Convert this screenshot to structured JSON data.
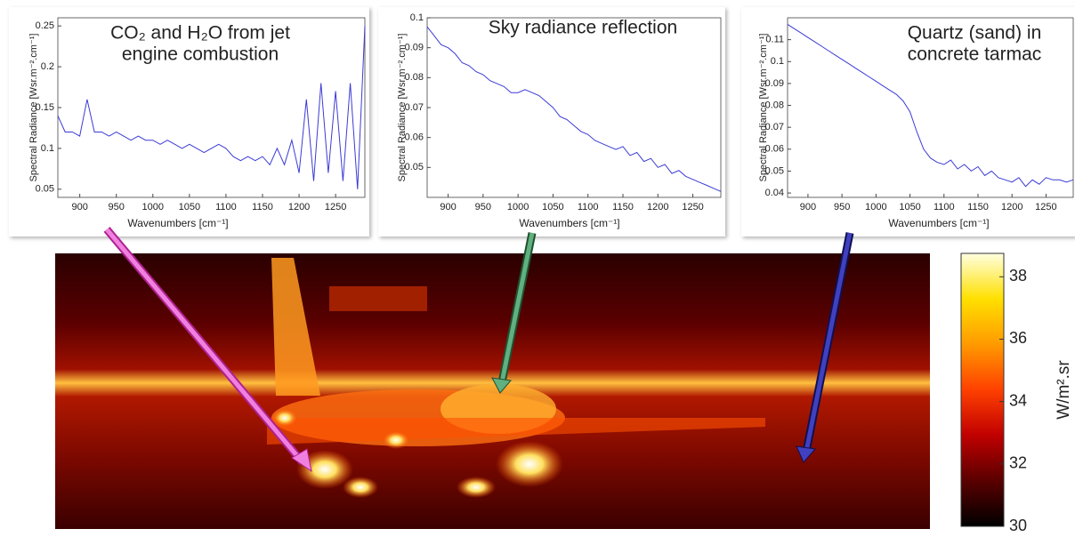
{
  "chart_data": [
    {
      "type": "line",
      "title": [
        "CO₂ and H₂O from jet",
        "engine combustion"
      ],
      "xlabel": "Wavenumbers [cm⁻¹]",
      "ylabel": "Spectral Radiance [Wsr.m⁻².cm⁻¹]",
      "color": "#3b3bd6",
      "x": [
        870,
        880,
        890,
        900,
        910,
        920,
        930,
        940,
        950,
        960,
        970,
        980,
        990,
        1000,
        1010,
        1020,
        1030,
        1040,
        1050,
        1060,
        1070,
        1080,
        1090,
        1100,
        1110,
        1120,
        1130,
        1140,
        1150,
        1160,
        1170,
        1180,
        1190,
        1200,
        1210,
        1220,
        1230,
        1240,
        1250,
        1260,
        1270,
        1280,
        1290
      ],
      "values": [
        0.14,
        0.12,
        0.12,
        0.115,
        0.16,
        0.12,
        0.12,
        0.115,
        0.12,
        0.115,
        0.11,
        0.115,
        0.11,
        0.11,
        0.105,
        0.11,
        0.105,
        0.1,
        0.105,
        0.1,
        0.095,
        0.1,
        0.105,
        0.1,
        0.09,
        0.085,
        0.09,
        0.085,
        0.09,
        0.08,
        0.1,
        0.08,
        0.11,
        0.07,
        0.16,
        0.06,
        0.18,
        0.07,
        0.17,
        0.06,
        0.18,
        0.05,
        0.25
      ],
      "xlim": [
        870,
        1290
      ],
      "xticks": [
        900,
        950,
        1000,
        1050,
        1100,
        1150,
        1200,
        1250
      ],
      "ylim": [
        0.04,
        0.26
      ],
      "yticks": [
        0.05,
        0.1,
        0.15,
        0.2,
        0.25
      ]
    },
    {
      "type": "line",
      "title": [
        "Sky radiance reflection"
      ],
      "xlabel": "Wavenumbers [cm⁻¹]",
      "ylabel": "Spectral Radiance [Wsr.m⁻².cm⁻¹]",
      "color": "#3b3bd6",
      "x": [
        870,
        880,
        890,
        900,
        910,
        920,
        930,
        940,
        950,
        960,
        970,
        980,
        990,
        1000,
        1010,
        1020,
        1030,
        1040,
        1050,
        1060,
        1070,
        1080,
        1090,
        1100,
        1110,
        1120,
        1130,
        1140,
        1150,
        1160,
        1170,
        1180,
        1190,
        1200,
        1210,
        1220,
        1230,
        1240,
        1250,
        1260,
        1270,
        1280,
        1290
      ],
      "values": [
        0.097,
        0.094,
        0.091,
        0.09,
        0.088,
        0.085,
        0.084,
        0.082,
        0.081,
        0.079,
        0.078,
        0.077,
        0.075,
        0.075,
        0.076,
        0.075,
        0.074,
        0.072,
        0.07,
        0.067,
        0.066,
        0.064,
        0.062,
        0.061,
        0.059,
        0.058,
        0.057,
        0.056,
        0.057,
        0.054,
        0.055,
        0.052,
        0.053,
        0.05,
        0.051,
        0.048,
        0.049,
        0.047,
        0.046,
        0.045,
        0.044,
        0.043,
        0.042
      ],
      "xlim": [
        870,
        1290
      ],
      "xticks": [
        900,
        950,
        1000,
        1050,
        1100,
        1150,
        1200,
        1250
      ],
      "ylim": [
        0.04,
        0.1
      ],
      "yticks": [
        0.05,
        0.06,
        0.07,
        0.08,
        0.09,
        0.1
      ]
    },
    {
      "type": "line",
      "title": [
        "Quartz (sand) in",
        "concrete tarmac"
      ],
      "xlabel": "Wavenumbers [cm⁻¹]",
      "ylabel": "Spectral Radiance [Wsr.m⁻².cm⁻¹]",
      "color": "#3b3bd6",
      "x": [
        870,
        880,
        890,
        900,
        910,
        920,
        930,
        940,
        950,
        960,
        970,
        980,
        990,
        1000,
        1010,
        1020,
        1030,
        1040,
        1050,
        1060,
        1070,
        1080,
        1090,
        1100,
        1110,
        1120,
        1130,
        1140,
        1150,
        1160,
        1170,
        1180,
        1190,
        1200,
        1210,
        1220,
        1230,
        1240,
        1250,
        1260,
        1270,
        1280,
        1290
      ],
      "values": [
        0.117,
        0.115,
        0.113,
        0.111,
        0.109,
        0.107,
        0.105,
        0.103,
        0.101,
        0.099,
        0.097,
        0.095,
        0.093,
        0.091,
        0.089,
        0.087,
        0.085,
        0.082,
        0.077,
        0.068,
        0.06,
        0.056,
        0.054,
        0.053,
        0.055,
        0.051,
        0.053,
        0.05,
        0.052,
        0.048,
        0.05,
        0.047,
        0.046,
        0.045,
        0.047,
        0.043,
        0.046,
        0.044,
        0.047,
        0.046,
        0.046,
        0.045,
        0.046
      ],
      "xlim": [
        870,
        1290
      ],
      "xticks": [
        900,
        950,
        1000,
        1050,
        1100,
        1150,
        1200,
        1250
      ],
      "ylim": [
        0.038,
        0.12
      ],
      "yticks": [
        0.04,
        0.05,
        0.06,
        0.07,
        0.08,
        0.09,
        0.1,
        0.11
      ]
    },
    {
      "type": "colorbar",
      "label": "W/m².sr",
      "ylim": [
        30,
        38.75
      ],
      "yticks": [
        30,
        32,
        34,
        36,
        38
      ],
      "colors": [
        "#000000",
        "#5a0000",
        "#c00000",
        "#ff4000",
        "#ff9a00",
        "#ffe000",
        "#ffffe0"
      ]
    }
  ]
}
